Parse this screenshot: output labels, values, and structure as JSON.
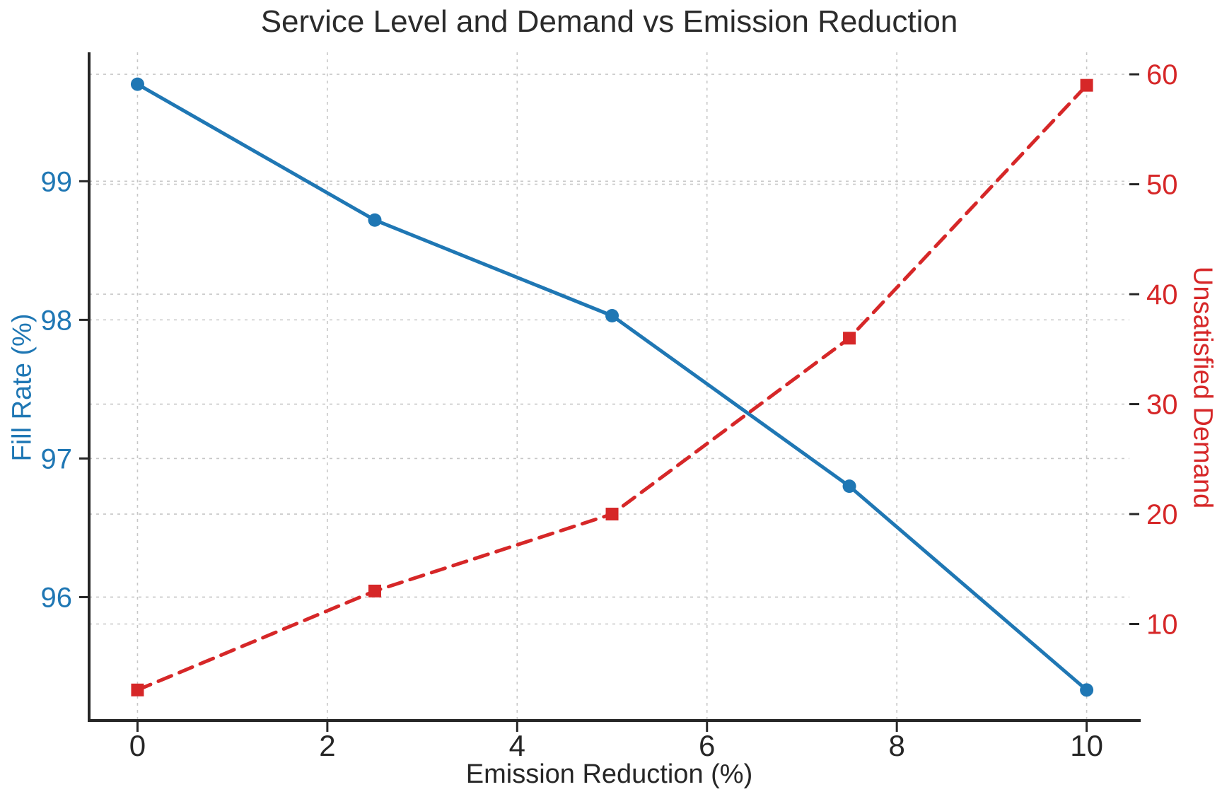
{
  "title": "Service Level and Demand vs Emission Reduction",
  "chart_data": {
    "type": "line",
    "title": "Service Level and Demand vs Emission Reduction",
    "xlabel": "Emission Reduction (%)",
    "ylabel_left": "Fill Rate (%)",
    "ylabel_right": "Unsatisfied Demand",
    "x": [
      0,
      2.5,
      5,
      7.5,
      10
    ],
    "series": [
      {
        "name": "Fill Rate (%)",
        "axis": "left",
        "values": [
          99.7,
          98.72,
          98.03,
          96.8,
          95.33
        ],
        "color": "#1f77b4",
        "line_style": "solid",
        "marker": "circle"
      },
      {
        "name": "Unsatisfied Demand",
        "axis": "right",
        "values": [
          4,
          13,
          20,
          36,
          59
        ],
        "color": "#d62728",
        "line_style": "dashed",
        "marker": "square"
      }
    ],
    "x_ticks": [
      0,
      2,
      4,
      6,
      8,
      10
    ],
    "xlim": [
      -0.51,
      10.45
    ],
    "left_axis": {
      "ticks": [
        96,
        97,
        98,
        99
      ],
      "lim": [
        95.12,
        99.93
      ],
      "color": "#1f77b4"
    },
    "right_axis": {
      "ticks": [
        10,
        20,
        30,
        40,
        50,
        60
      ],
      "lim": [
        1.35,
        62.0
      ],
      "color": "#d62728"
    },
    "grid": true,
    "legend": "none",
    "text_color": "#262626",
    "grid_color": "#c7c7c7"
  }
}
